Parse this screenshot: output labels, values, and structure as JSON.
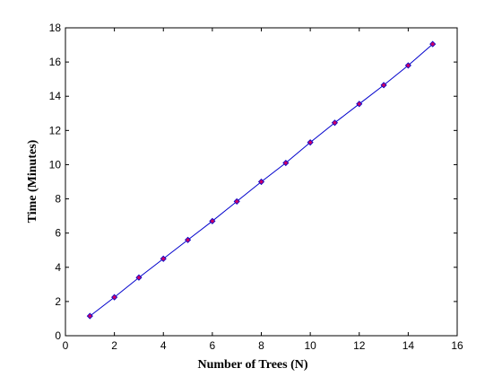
{
  "chart_data": {
    "type": "line",
    "title": "",
    "xlabel": "Number of Trees (N)",
    "ylabel": "Time (Minutes)",
    "xlim": [
      0,
      16
    ],
    "ylim": [
      0,
      18
    ],
    "xticks": [
      0,
      2,
      4,
      6,
      8,
      10,
      12,
      14,
      16
    ],
    "yticks": [
      0,
      2,
      4,
      6,
      8,
      10,
      12,
      14,
      16,
      18
    ],
    "grid": false,
    "legend": "none",
    "series": [
      {
        "x": [
          1,
          2,
          3,
          4,
          5,
          6,
          7,
          8,
          9,
          10,
          11,
          12,
          13,
          14,
          15
        ],
        "y": [
          1.15,
          2.25,
          3.4,
          4.5,
          5.6,
          6.7,
          7.85,
          9.0,
          10.1,
          11.3,
          12.45,
          13.55,
          14.65,
          15.8,
          17.05
        ],
        "line_color": "#0000cc",
        "marker_color": "#cc0066",
        "marker": "diamond"
      }
    ]
  }
}
